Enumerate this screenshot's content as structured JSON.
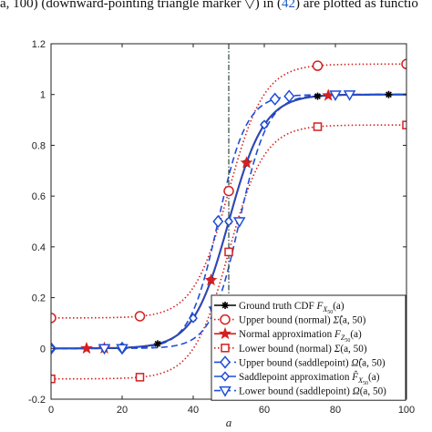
{
  "caption": {
    "pre": "a, 100) (downward-pointing triangle marker ▽) in (",
    "ref": "42",
    "post": ") are plotted as functio"
  },
  "chart_data": {
    "type": "line",
    "xlabel": "a",
    "xlim": [
      0,
      100
    ],
    "ylim": [
      -0.2,
      1.2
    ],
    "xticks": [
      0,
      20,
      40,
      60,
      80,
      100
    ],
    "yticks": [
      -0.2,
      0,
      0.2,
      0.4,
      0.6,
      0.8,
      1,
      1.2
    ],
    "ytick_labels": [
      "-0.2",
      "0",
      "0.2",
      "0.4",
      "0.6",
      "0.8",
      "1",
      "1.2"
    ],
    "vline": {
      "x": 50,
      "color": "#2e4a3a",
      "style": "dashdot"
    },
    "grid": false,
    "legend_position": "bottom-right",
    "series": [
      {
        "name": "Ground truth CDF F_{X50}(a)",
        "color": "#000000",
        "style": "solid",
        "marker": "asterisk",
        "center": 50,
        "scale": 5.0,
        "low": 0,
        "high": 1,
        "markers_x": [
          0,
          20,
          30,
          40,
          45,
          50,
          55,
          60,
          75,
          95
        ]
      },
      {
        "name": "Upper bound (normal) Σ̂(a, 50)",
        "color": "#d42020",
        "style": "dotted",
        "marker": "circle",
        "center": 50,
        "scale": 5.0,
        "low": 0.12,
        "high": 1.12,
        "markers_x": [
          0,
          25,
          50,
          75,
          100
        ]
      },
      {
        "name": "Normal approximation F_{Z50}(a)",
        "color": "#d42020",
        "style": "solid",
        "marker": "star",
        "center": 50,
        "scale": 5.0,
        "low": 0,
        "high": 1,
        "markers_x": [
          10,
          15,
          45,
          55,
          78
        ]
      },
      {
        "name": "Lower bound (normal) Σ(a, 50)",
        "color": "#d42020",
        "style": "dotted",
        "marker": "square",
        "center": 50,
        "scale": 5.0,
        "low": -0.12,
        "high": 0.88,
        "markers_x": [
          0,
          25,
          50,
          75,
          100
        ]
      },
      {
        "name": "Upper bound (saddlepoint) Ω̂(a, 50)",
        "color": "#1f4fd8",
        "style": "dashed",
        "marker": "diamond",
        "center": 47,
        "scale": 4.0,
        "low": 0,
        "high": 1,
        "markers_x": [
          0,
          20,
          47,
          63,
          67
        ]
      },
      {
        "name": "Saddlepoint approximation F̂_{X50}(a)",
        "color": "#1f4fd8",
        "style": "solid",
        "marker": "diamond-small",
        "center": 50,
        "scale": 5.0,
        "low": 0,
        "high": 1,
        "markers_x": [
          0,
          20,
          40,
          50,
          60
        ]
      },
      {
        "name": "Lower bound (saddlepoint) Ω(a, 50)",
        "color": "#1f4fd8",
        "style": "dashed",
        "marker": "triangle-down",
        "center": 53,
        "scale": 4.0,
        "low": 0,
        "high": 1,
        "markers_x": [
          15,
          20,
          46,
          53,
          80,
          84
        ]
      }
    ],
    "legend_entries": [
      {
        "label": "Ground truth CDF",
        "math": "F",
        "sub": "X",
        "subsub": "50",
        "arg": "(a)"
      },
      {
        "label": "Upper bound (normal)",
        "math": "Σ̂",
        "sub": "",
        "subsub": "",
        "arg": "(a, 50)"
      },
      {
        "label": "Normal approximation",
        "math": "F",
        "sub": "Z",
        "subsub": "50",
        "arg": "(a)"
      },
      {
        "label": "Lower bound (normal)",
        "math": "Σ",
        "sub": "",
        "subsub": "",
        "arg": "(a, 50)"
      },
      {
        "label": "Upper bound (saddlepoint)",
        "math": "Ω̂",
        "sub": "",
        "subsub": "",
        "arg": "(a, 50)"
      },
      {
        "label": "Saddlepoint approximation",
        "math": "F̂",
        "sub": "X",
        "subsub": "50",
        "arg": "(a)"
      },
      {
        "label": "Lower bound (saddlepoint)",
        "math": "Ω",
        "sub": "",
        "subsub": "",
        "arg": "(a, 50)"
      }
    ]
  }
}
